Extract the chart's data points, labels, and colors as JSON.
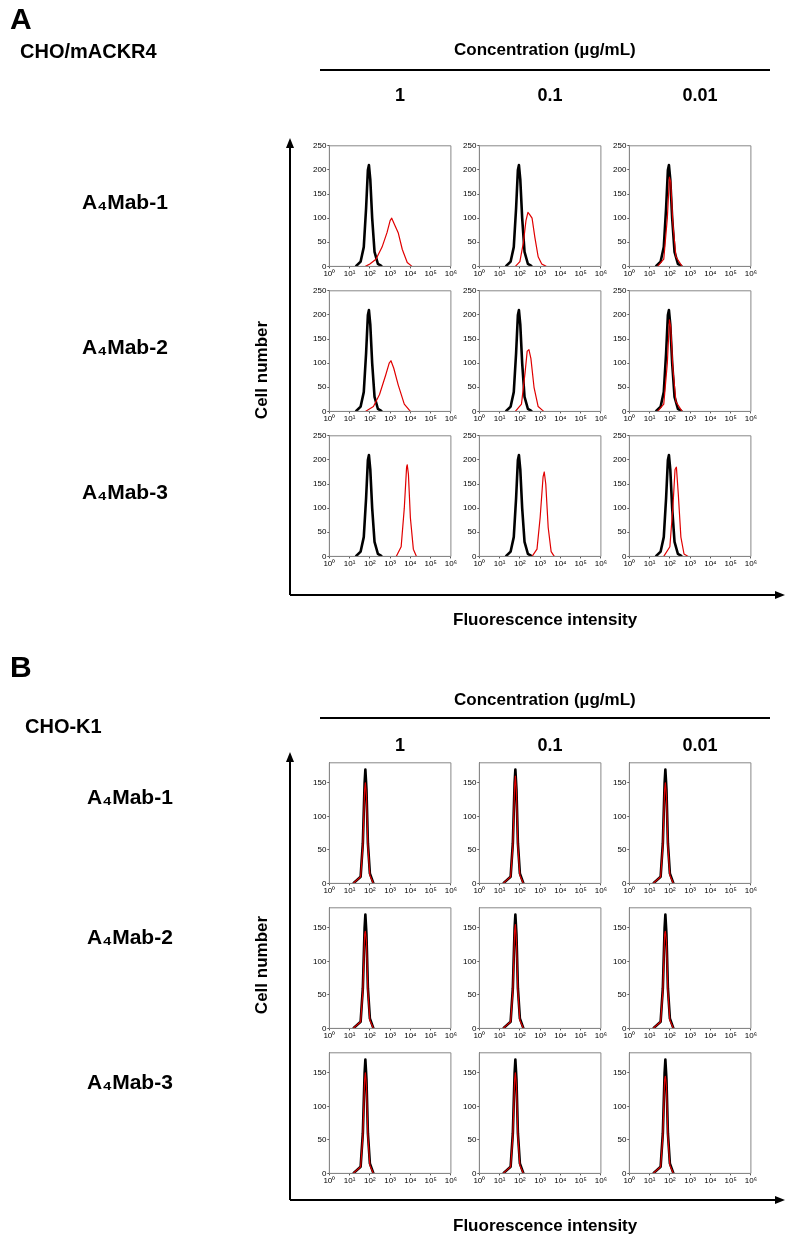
{
  "chart_data": [
    {
      "type": "other",
      "title": "A",
      "annotations": [
        "CHO/mACKR4",
        "Concentration (µg/mL)",
        "1",
        "0.1",
        "0.01",
        "A₄Mab-1",
        "A₄Mab-2",
        "A₄Mab-3",
        "Cell number",
        "Fluorescence intensity"
      ]
    },
    {
      "type": "line",
      "log": "x",
      "xlim": [
        1,
        1000000
      ],
      "xticks": [
        {
          "value": 1,
          "label": "10⁰"
        },
        {
          "value": 10,
          "label": "10¹"
        },
        {
          "value": 100,
          "label": "10²"
        },
        {
          "value": 1000,
          "label": "10³"
        },
        {
          "value": 10000,
          "label": "10⁴"
        },
        {
          "value": 100000,
          "label": "10⁵"
        },
        {
          "value": 1000000,
          "label": "10⁶"
        }
      ],
      "ylim": [
        0,
        250
      ],
      "yticks": [
        0,
        50,
        100,
        150,
        200,
        250
      ],
      "series": [
        {
          "color": "#000000",
          "x": [
            20,
            35,
            50,
            65,
            80,
            90,
            105,
            130,
            170,
            250,
            400
          ],
          "values": [
            0,
            10,
            40,
            120,
            200,
            210,
            180,
            100,
            30,
            5,
            0
          ]
        },
        {
          "color": "#e00000",
          "x": [
            60,
            100,
            200,
            400,
            700,
            1000,
            1200,
            1600,
            2500,
            4000,
            7000,
            12000
          ],
          "values": [
            0,
            5,
            15,
            40,
            70,
            95,
            100,
            88,
            70,
            35,
            8,
            0
          ]
        }
      ]
    },
    {
      "type": "line",
      "log": "x",
      "xlim": [
        1,
        1000000
      ],
      "xticks": [
        {
          "value": 1,
          "label": "10⁰"
        },
        {
          "value": 10,
          "label": "10¹"
        },
        {
          "value": 100,
          "label": "10²"
        },
        {
          "value": 1000,
          "label": "10³"
        },
        {
          "value": 10000,
          "label": "10⁴"
        },
        {
          "value": 100000,
          "label": "10⁵"
        },
        {
          "value": 1000000,
          "label": "10⁶"
        }
      ],
      "ylim": [
        0,
        250
      ],
      "yticks": [
        0,
        50,
        100,
        150,
        200,
        250
      ],
      "series": [
        {
          "color": "#000000",
          "x": [
            20,
            35,
            50,
            65,
            80,
            90,
            105,
            130,
            170,
            250,
            400
          ],
          "values": [
            0,
            10,
            40,
            120,
            200,
            210,
            180,
            100,
            30,
            5,
            0
          ]
        },
        {
          "color": "#e00000",
          "x": [
            60,
            100,
            150,
            200,
            250,
            300,
            400,
            550,
            800,
            1200,
            2000
          ],
          "values": [
            0,
            10,
            50,
            95,
            112,
            108,
            100,
            60,
            20,
            5,
            0
          ]
        }
      ]
    },
    {
      "type": "line",
      "log": "x",
      "xlim": [
        1,
        1000000
      ],
      "xticks": [
        {
          "value": 1,
          "label": "10⁰"
        },
        {
          "value": 10,
          "label": "10¹"
        },
        {
          "value": 100,
          "label": "10²"
        },
        {
          "value": 1000,
          "label": "10³"
        },
        {
          "value": 10000,
          "label": "10⁴"
        },
        {
          "value": 100000,
          "label": "10⁵"
        },
        {
          "value": 1000000,
          "label": "10⁶"
        }
      ],
      "ylim": [
        0,
        250
      ],
      "yticks": [
        0,
        50,
        100,
        150,
        200,
        250
      ],
      "series": [
        {
          "color": "#000000",
          "x": [
            20,
            35,
            50,
            65,
            80,
            90,
            105,
            130,
            170,
            250,
            400
          ],
          "values": [
            0,
            10,
            40,
            120,
            200,
            210,
            180,
            100,
            30,
            5,
            0
          ]
        },
        {
          "color": "#e00000",
          "x": [
            25,
            50,
            75,
            95,
            110,
            140,
            200,
            400
          ],
          "values": [
            0,
            15,
            100,
            185,
            175,
            90,
            20,
            0
          ]
        }
      ]
    },
    {
      "type": "line",
      "log": "x",
      "xlim": [
        1,
        1000000
      ],
      "xticks": [
        {
          "value": 1,
          "label": "10⁰"
        },
        {
          "value": 10,
          "label": "10¹"
        },
        {
          "value": 100,
          "label": "10²"
        },
        {
          "value": 1000,
          "label": "10³"
        },
        {
          "value": 10000,
          "label": "10⁴"
        },
        {
          "value": 100000,
          "label": "10⁵"
        },
        {
          "value": 1000000,
          "label": "10⁶"
        }
      ],
      "ylim": [
        0,
        250
      ],
      "yticks": [
        0,
        50,
        100,
        150,
        200,
        250
      ],
      "series": [
        {
          "color": "#000000",
          "x": [
            20,
            35,
            50,
            65,
            80,
            90,
            105,
            130,
            170,
            250,
            400
          ],
          "values": [
            0,
            10,
            40,
            120,
            200,
            210,
            180,
            100,
            30,
            5,
            0
          ]
        },
        {
          "color": "#e00000",
          "x": [
            60,
            150,
            300,
            600,
            900,
            1100,
            1500,
            2500,
            5000,
            10000
          ],
          "values": [
            0,
            10,
            35,
            75,
            100,
            105,
            90,
            55,
            15,
            0
          ]
        }
      ]
    },
    {
      "type": "line",
      "log": "x",
      "xlim": [
        1,
        1000000
      ],
      "xticks": [
        {
          "value": 1,
          "label": "10⁰"
        },
        {
          "value": 10,
          "label": "10¹"
        },
        {
          "value": 100,
          "label": "10²"
        },
        {
          "value": 1000,
          "label": "10³"
        },
        {
          "value": 10000,
          "label": "10⁴"
        },
        {
          "value": 100000,
          "label": "10⁵"
        },
        {
          "value": 1000000,
          "label": "10⁶"
        }
      ],
      "ylim": [
        0,
        250
      ],
      "yticks": [
        0,
        50,
        100,
        150,
        200,
        250
      ],
      "series": [
        {
          "color": "#000000",
          "x": [
            20,
            35,
            50,
            65,
            80,
            90,
            105,
            130,
            170,
            250,
            400
          ],
          "values": [
            0,
            10,
            40,
            120,
            200,
            210,
            180,
            100,
            30,
            5,
            0
          ]
        },
        {
          "color": "#e00000",
          "x": [
            60,
            120,
            180,
            230,
            280,
            350,
            500,
            800,
            1500
          ],
          "values": [
            0,
            15,
            80,
            125,
            128,
            110,
            50,
            10,
            0
          ]
        }
      ]
    },
    {
      "type": "line",
      "log": "x",
      "xlim": [
        1,
        1000000
      ],
      "xticks": [
        {
          "value": 1,
          "label": "10⁰"
        },
        {
          "value": 10,
          "label": "10¹"
        },
        {
          "value": 100,
          "label": "10²"
        },
        {
          "value": 1000,
          "label": "10³"
        },
        {
          "value": 10000,
          "label": "10⁴"
        },
        {
          "value": 100000,
          "label": "10⁵"
        },
        {
          "value": 1000000,
          "label": "10⁶"
        }
      ],
      "ylim": [
        0,
        250
      ],
      "yticks": [
        0,
        50,
        100,
        150,
        200,
        250
      ],
      "series": [
        {
          "color": "#000000",
          "x": [
            20,
            35,
            50,
            65,
            80,
            90,
            105,
            130,
            170,
            250,
            400
          ],
          "values": [
            0,
            10,
            40,
            120,
            200,
            210,
            180,
            100,
            30,
            5,
            0
          ]
        },
        {
          "color": "#e00000",
          "x": [
            25,
            50,
            75,
            95,
            110,
            140,
            200,
            400
          ],
          "values": [
            0,
            15,
            100,
            190,
            175,
            90,
            20,
            0
          ]
        }
      ]
    },
    {
      "type": "line",
      "log": "x",
      "xlim": [
        1,
        1000000
      ],
      "xticks": [
        {
          "value": 1,
          "label": "10⁰"
        },
        {
          "value": 10,
          "label": "10¹"
        },
        {
          "value": 100,
          "label": "10²"
        },
        {
          "value": 1000,
          "label": "10³"
        },
        {
          "value": 10000,
          "label": "10⁴"
        },
        {
          "value": 100000,
          "label": "10⁵"
        },
        {
          "value": 1000000,
          "label": "10⁶"
        }
      ],
      "ylim": [
        0,
        250
      ],
      "yticks": [
        0,
        50,
        100,
        150,
        200,
        250
      ],
      "series": [
        {
          "color": "#000000",
          "x": [
            20,
            35,
            50,
            65,
            80,
            90,
            105,
            130,
            170,
            250,
            400
          ],
          "values": [
            0,
            10,
            40,
            120,
            200,
            210,
            180,
            100,
            30,
            5,
            0
          ]
        },
        {
          "color": "#e00000",
          "x": [
            2000,
            3500,
            5000,
            6500,
            7000,
            8000,
            10000,
            14000,
            20000
          ],
          "values": [
            0,
            20,
            100,
            185,
            190,
            170,
            80,
            15,
            0
          ]
        }
      ]
    },
    {
      "type": "line",
      "log": "x",
      "xlim": [
        1,
        1000000
      ],
      "xticks": [
        {
          "value": 1,
          "label": "10⁰"
        },
        {
          "value": 10,
          "label": "10¹"
        },
        {
          "value": 100,
          "label": "10²"
        },
        {
          "value": 1000,
          "label": "10³"
        },
        {
          "value": 10000,
          "label": "10⁴"
        },
        {
          "value": 100000,
          "label": "10⁵"
        },
        {
          "value": 1000000,
          "label": "10⁶"
        }
      ],
      "ylim": [
        0,
        250
      ],
      "yticks": [
        0,
        50,
        100,
        150,
        200,
        250
      ],
      "series": [
        {
          "color": "#000000",
          "x": [
            20,
            35,
            50,
            65,
            80,
            90,
            105,
            130,
            170,
            250,
            400
          ],
          "values": [
            0,
            10,
            40,
            120,
            200,
            210,
            180,
            100,
            30,
            5,
            0
          ]
        },
        {
          "color": "#e00000",
          "x": [
            400,
            700,
            1000,
            1400,
            1600,
            1900,
            2500,
            3500,
            5000
          ],
          "values": [
            0,
            15,
            80,
            165,
            175,
            150,
            60,
            10,
            0
          ]
        }
      ]
    },
    {
      "type": "line",
      "log": "x",
      "xlim": [
        1,
        1000000
      ],
      "xticks": [
        {
          "value": 1,
          "label": "10⁰"
        },
        {
          "value": 10,
          "label": "10¹"
        },
        {
          "value": 100,
          "label": "10²"
        },
        {
          "value": 1000,
          "label": "10³"
        },
        {
          "value": 10000,
          "label": "10⁴"
        },
        {
          "value": 100000,
          "label": "10⁵"
        },
        {
          "value": 1000000,
          "label": "10⁶"
        }
      ],
      "ylim": [
        0,
        250
      ],
      "yticks": [
        0,
        50,
        100,
        150,
        200,
        250
      ],
      "series": [
        {
          "color": "#000000",
          "x": [
            20,
            35,
            50,
            65,
            80,
            90,
            105,
            130,
            170,
            250,
            400
          ],
          "values": [
            0,
            10,
            40,
            120,
            200,
            210,
            180,
            100,
            30,
            5,
            0
          ]
        },
        {
          "color": "#e00000",
          "x": [
            50,
            100,
            140,
            180,
            210,
            260,
            350,
            500,
            800
          ],
          "values": [
            0,
            20,
            100,
            180,
            185,
            130,
            40,
            5,
            0
          ]
        }
      ]
    },
    {
      "type": "other",
      "title": "B",
      "annotations": [
        "CHO-K1",
        "Concentration (µg/mL)",
        "1",
        "0.1",
        "0.01",
        "A₄Mab-1",
        "A₄Mab-2",
        "A₄Mab-3",
        "Cell number",
        "Fluorescence intensity"
      ]
    },
    {
      "type": "line",
      "log": "x",
      "xlim": [
        1,
        1000000
      ],
      "xticks": [
        {
          "value": 1,
          "label": "10⁰"
        },
        {
          "value": 10,
          "label": "10¹"
        },
        {
          "value": 100,
          "label": "10²"
        },
        {
          "value": 1000,
          "label": "10³"
        },
        {
          "value": 10000,
          "label": "10⁴"
        },
        {
          "value": 100000,
          "label": "10⁵"
        },
        {
          "value": 1000000,
          "label": "10⁶"
        }
      ],
      "ylim": [
        0,
        180
      ],
      "yticks": [
        0,
        50,
        100,
        150
      ],
      "series": [
        {
          "color": "#000000",
          "x": [
            15,
            35,
            45,
            55,
            60,
            68,
            80,
            100,
            150
          ],
          "values": [
            0,
            10,
            60,
            150,
            170,
            140,
            60,
            15,
            0
          ]
        },
        {
          "color": "#e00000",
          "x": [
            15,
            35,
            45,
            55,
            60,
            68,
            80,
            100,
            150
          ],
          "values": [
            0,
            10,
            55,
            140,
            150,
            130,
            55,
            12,
            0
          ]
        }
      ]
    },
    {
      "type": "line",
      "log": "x",
      "xlim": [
        1,
        1000000
      ],
      "xticks": [
        {
          "value": 1,
          "label": "10⁰"
        },
        {
          "value": 10,
          "label": "10¹"
        },
        {
          "value": 100,
          "label": "10²"
        },
        {
          "value": 1000,
          "label": "10³"
        },
        {
          "value": 10000,
          "label": "10⁴"
        },
        {
          "value": 100000,
          "label": "10⁵"
        },
        {
          "value": 1000000,
          "label": "10⁶"
        }
      ],
      "ylim": [
        0,
        180
      ],
      "yticks": [
        0,
        50,
        100,
        150
      ],
      "series": [
        {
          "color": "#000000",
          "x": [
            15,
            35,
            45,
            55,
            60,
            68,
            80,
            100,
            150
          ],
          "values": [
            0,
            10,
            60,
            150,
            170,
            140,
            60,
            15,
            0
          ]
        },
        {
          "color": "#e00000",
          "x": [
            15,
            35,
            45,
            55,
            60,
            68,
            80,
            100,
            150
          ],
          "values": [
            0,
            10,
            55,
            145,
            160,
            135,
            55,
            12,
            0
          ]
        }
      ]
    },
    {
      "type": "line",
      "log": "x",
      "xlim": [
        1,
        1000000
      ],
      "xticks": [
        {
          "value": 1,
          "label": "10⁰"
        },
        {
          "value": 10,
          "label": "10¹"
        },
        {
          "value": 100,
          "label": "10²"
        },
        {
          "value": 1000,
          "label": "10³"
        },
        {
          "value": 10000,
          "label": "10⁴"
        },
        {
          "value": 100000,
          "label": "10⁵"
        },
        {
          "value": 1000000,
          "label": "10⁶"
        }
      ],
      "ylim": [
        0,
        180
      ],
      "yticks": [
        0,
        50,
        100,
        150
      ],
      "series": [
        {
          "color": "#000000",
          "x": [
            15,
            35,
            45,
            55,
            60,
            68,
            80,
            100,
            150
          ],
          "values": [
            0,
            10,
            60,
            150,
            170,
            140,
            60,
            15,
            0
          ]
        },
        {
          "color": "#e00000",
          "x": [
            15,
            35,
            45,
            55,
            60,
            68,
            80,
            100,
            150
          ],
          "values": [
            0,
            10,
            55,
            140,
            150,
            130,
            55,
            12,
            0
          ]
        }
      ]
    },
    {
      "type": "line",
      "log": "x",
      "xlim": [
        1,
        1000000
      ],
      "xticks": [
        {
          "value": 1,
          "label": "10⁰"
        },
        {
          "value": 10,
          "label": "10¹"
        },
        {
          "value": 100,
          "label": "10²"
        },
        {
          "value": 1000,
          "label": "10³"
        },
        {
          "value": 10000,
          "label": "10⁴"
        },
        {
          "value": 100000,
          "label": "10⁵"
        },
        {
          "value": 1000000,
          "label": "10⁶"
        }
      ],
      "ylim": [
        0,
        180
      ],
      "yticks": [
        0,
        50,
        100,
        150
      ],
      "series": [
        {
          "color": "#000000",
          "x": [
            15,
            35,
            45,
            55,
            60,
            68,
            80,
            100,
            150
          ],
          "values": [
            0,
            10,
            60,
            150,
            170,
            140,
            60,
            15,
            0
          ]
        },
        {
          "color": "#e00000",
          "x": [
            15,
            35,
            45,
            55,
            60,
            68,
            80,
            100,
            150
          ],
          "values": [
            0,
            10,
            55,
            140,
            145,
            130,
            55,
            12,
            0
          ]
        }
      ]
    },
    {
      "type": "line",
      "log": "x",
      "xlim": [
        1,
        1000000
      ],
      "xticks": [
        {
          "value": 1,
          "label": "10⁰"
        },
        {
          "value": 10,
          "label": "10¹"
        },
        {
          "value": 100,
          "label": "10²"
        },
        {
          "value": 1000,
          "label": "10³"
        },
        {
          "value": 10000,
          "label": "10⁴"
        },
        {
          "value": 100000,
          "label": "10⁵"
        },
        {
          "value": 1000000,
          "label": "10⁶"
        }
      ],
      "ylim": [
        0,
        180
      ],
      "yticks": [
        0,
        50,
        100,
        150
      ],
      "series": [
        {
          "color": "#000000",
          "x": [
            15,
            35,
            45,
            55,
            60,
            68,
            80,
            100,
            150
          ],
          "values": [
            0,
            10,
            60,
            150,
            170,
            140,
            60,
            15,
            0
          ]
        },
        {
          "color": "#e00000",
          "x": [
            15,
            35,
            45,
            55,
            60,
            68,
            80,
            100,
            150
          ],
          "values": [
            0,
            10,
            55,
            145,
            155,
            130,
            55,
            12,
            0
          ]
        }
      ]
    },
    {
      "type": "line",
      "log": "x",
      "xlim": [
        1,
        1000000
      ],
      "xticks": [
        {
          "value": 1,
          "label": "10⁰"
        },
        {
          "value": 10,
          "label": "10¹"
        },
        {
          "value": 100,
          "label": "10²"
        },
        {
          "value": 1000,
          "label": "10³"
        },
        {
          "value": 10000,
          "label": "10⁴"
        },
        {
          "value": 100000,
          "label": "10⁵"
        },
        {
          "value": 1000000,
          "label": "10⁶"
        }
      ],
      "ylim": [
        0,
        180
      ],
      "yticks": [
        0,
        50,
        100,
        150
      ],
      "series": [
        {
          "color": "#000000",
          "x": [
            15,
            35,
            45,
            55,
            60,
            68,
            80,
            100,
            150
          ],
          "values": [
            0,
            10,
            60,
            150,
            170,
            140,
            60,
            15,
            0
          ]
        },
        {
          "color": "#e00000",
          "x": [
            15,
            35,
            45,
            55,
            60,
            68,
            80,
            100,
            150
          ],
          "values": [
            0,
            10,
            55,
            140,
            145,
            130,
            55,
            12,
            0
          ]
        }
      ]
    },
    {
      "type": "line",
      "log": "x",
      "xlim": [
        1,
        1000000
      ],
      "xticks": [
        {
          "value": 1,
          "label": "10⁰"
        },
        {
          "value": 10,
          "label": "10¹"
        },
        {
          "value": 100,
          "label": "10²"
        },
        {
          "value": 1000,
          "label": "10³"
        },
        {
          "value": 10000,
          "label": "10⁴"
        },
        {
          "value": 100000,
          "label": "10⁵"
        },
        {
          "value": 1000000,
          "label": "10⁶"
        }
      ],
      "ylim": [
        0,
        180
      ],
      "yticks": [
        0,
        50,
        100,
        150
      ],
      "series": [
        {
          "color": "#000000",
          "x": [
            15,
            35,
            45,
            55,
            60,
            68,
            80,
            100,
            150
          ],
          "values": [
            0,
            10,
            60,
            150,
            170,
            140,
            60,
            15,
            0
          ]
        },
        {
          "color": "#e00000",
          "x": [
            15,
            35,
            45,
            55,
            60,
            68,
            80,
            100,
            150
          ],
          "values": [
            0,
            10,
            55,
            140,
            150,
            130,
            55,
            12,
            0
          ]
        }
      ]
    },
    {
      "type": "line",
      "log": "x",
      "xlim": [
        1,
        1000000
      ],
      "xticks": [
        {
          "value": 1,
          "label": "10⁰"
        },
        {
          "value": 10,
          "label": "10¹"
        },
        {
          "value": 100,
          "label": "10²"
        },
        {
          "value": 1000,
          "label": "10³"
        },
        {
          "value": 10000,
          "label": "10⁴"
        },
        {
          "value": 100000,
          "label": "10⁵"
        },
        {
          "value": 1000000,
          "label": "10⁶"
        }
      ],
      "ylim": [
        0,
        180
      ],
      "yticks": [
        0,
        50,
        100,
        150
      ],
      "series": [
        {
          "color": "#000000",
          "x": [
            15,
            35,
            45,
            55,
            60,
            68,
            80,
            100,
            150
          ],
          "values": [
            0,
            10,
            60,
            150,
            170,
            140,
            60,
            15,
            0
          ]
        },
        {
          "color": "#e00000",
          "x": [
            15,
            35,
            45,
            55,
            60,
            68,
            80,
            100,
            150
          ],
          "values": [
            0,
            10,
            55,
            140,
            150,
            130,
            55,
            12,
            0
          ]
        }
      ]
    },
    {
      "type": "line",
      "log": "x",
      "xlim": [
        1,
        1000000
      ],
      "xticks": [
        {
          "value": 1,
          "label": "10⁰"
        },
        {
          "value": 10,
          "label": "10¹"
        },
        {
          "value": 100,
          "label": "10²"
        },
        {
          "value": 1000,
          "label": "10³"
        },
        {
          "value": 10000,
          "label": "10⁴"
        },
        {
          "value": 100000,
          "label": "10⁵"
        },
        {
          "value": 1000000,
          "label": "10⁶"
        }
      ],
      "ylim": [
        0,
        180
      ],
      "yticks": [
        0,
        50,
        100,
        150
      ],
      "series": [
        {
          "color": "#000000",
          "x": [
            15,
            35,
            45,
            55,
            60,
            68,
            80,
            100,
            150
          ],
          "values": [
            0,
            10,
            60,
            150,
            170,
            140,
            60,
            15,
            0
          ]
        },
        {
          "color": "#e00000",
          "x": [
            15,
            35,
            45,
            55,
            60,
            68,
            80,
            100,
            150
          ],
          "values": [
            0,
            10,
            55,
            140,
            145,
            130,
            55,
            12,
            0
          ]
        }
      ]
    }
  ]
}
